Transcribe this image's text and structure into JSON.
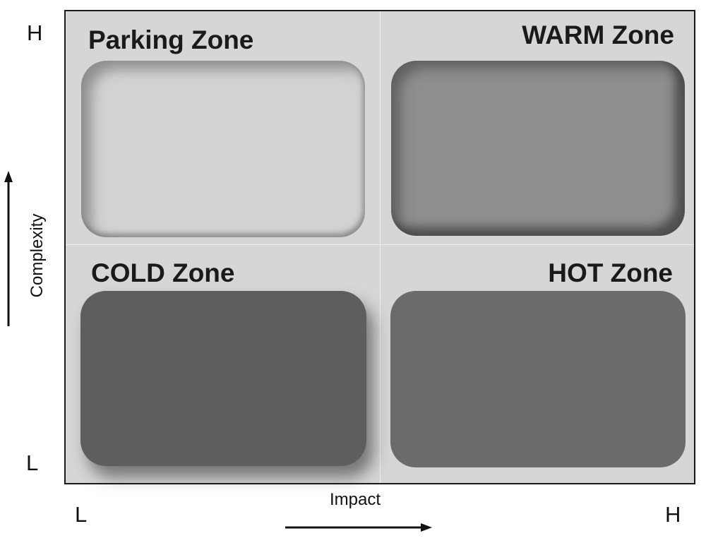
{
  "zones": {
    "top_left": "Parking Zone",
    "top_right": "WARM Zone",
    "bottom_left": "COLD Zone",
    "bottom_right": "HOT Zone"
  },
  "axes": {
    "y": {
      "label": "Complexity",
      "high": "H",
      "low": "L"
    },
    "x": {
      "label": "Impact",
      "low": "L",
      "high": "H"
    }
  },
  "colors": {
    "background": "#d6d6d6",
    "parking_box": "#d2d2d2",
    "warm_box": "#8e8e8e",
    "cold_box": "#5e5e5e",
    "hot_box": "#6b6b6b"
  }
}
